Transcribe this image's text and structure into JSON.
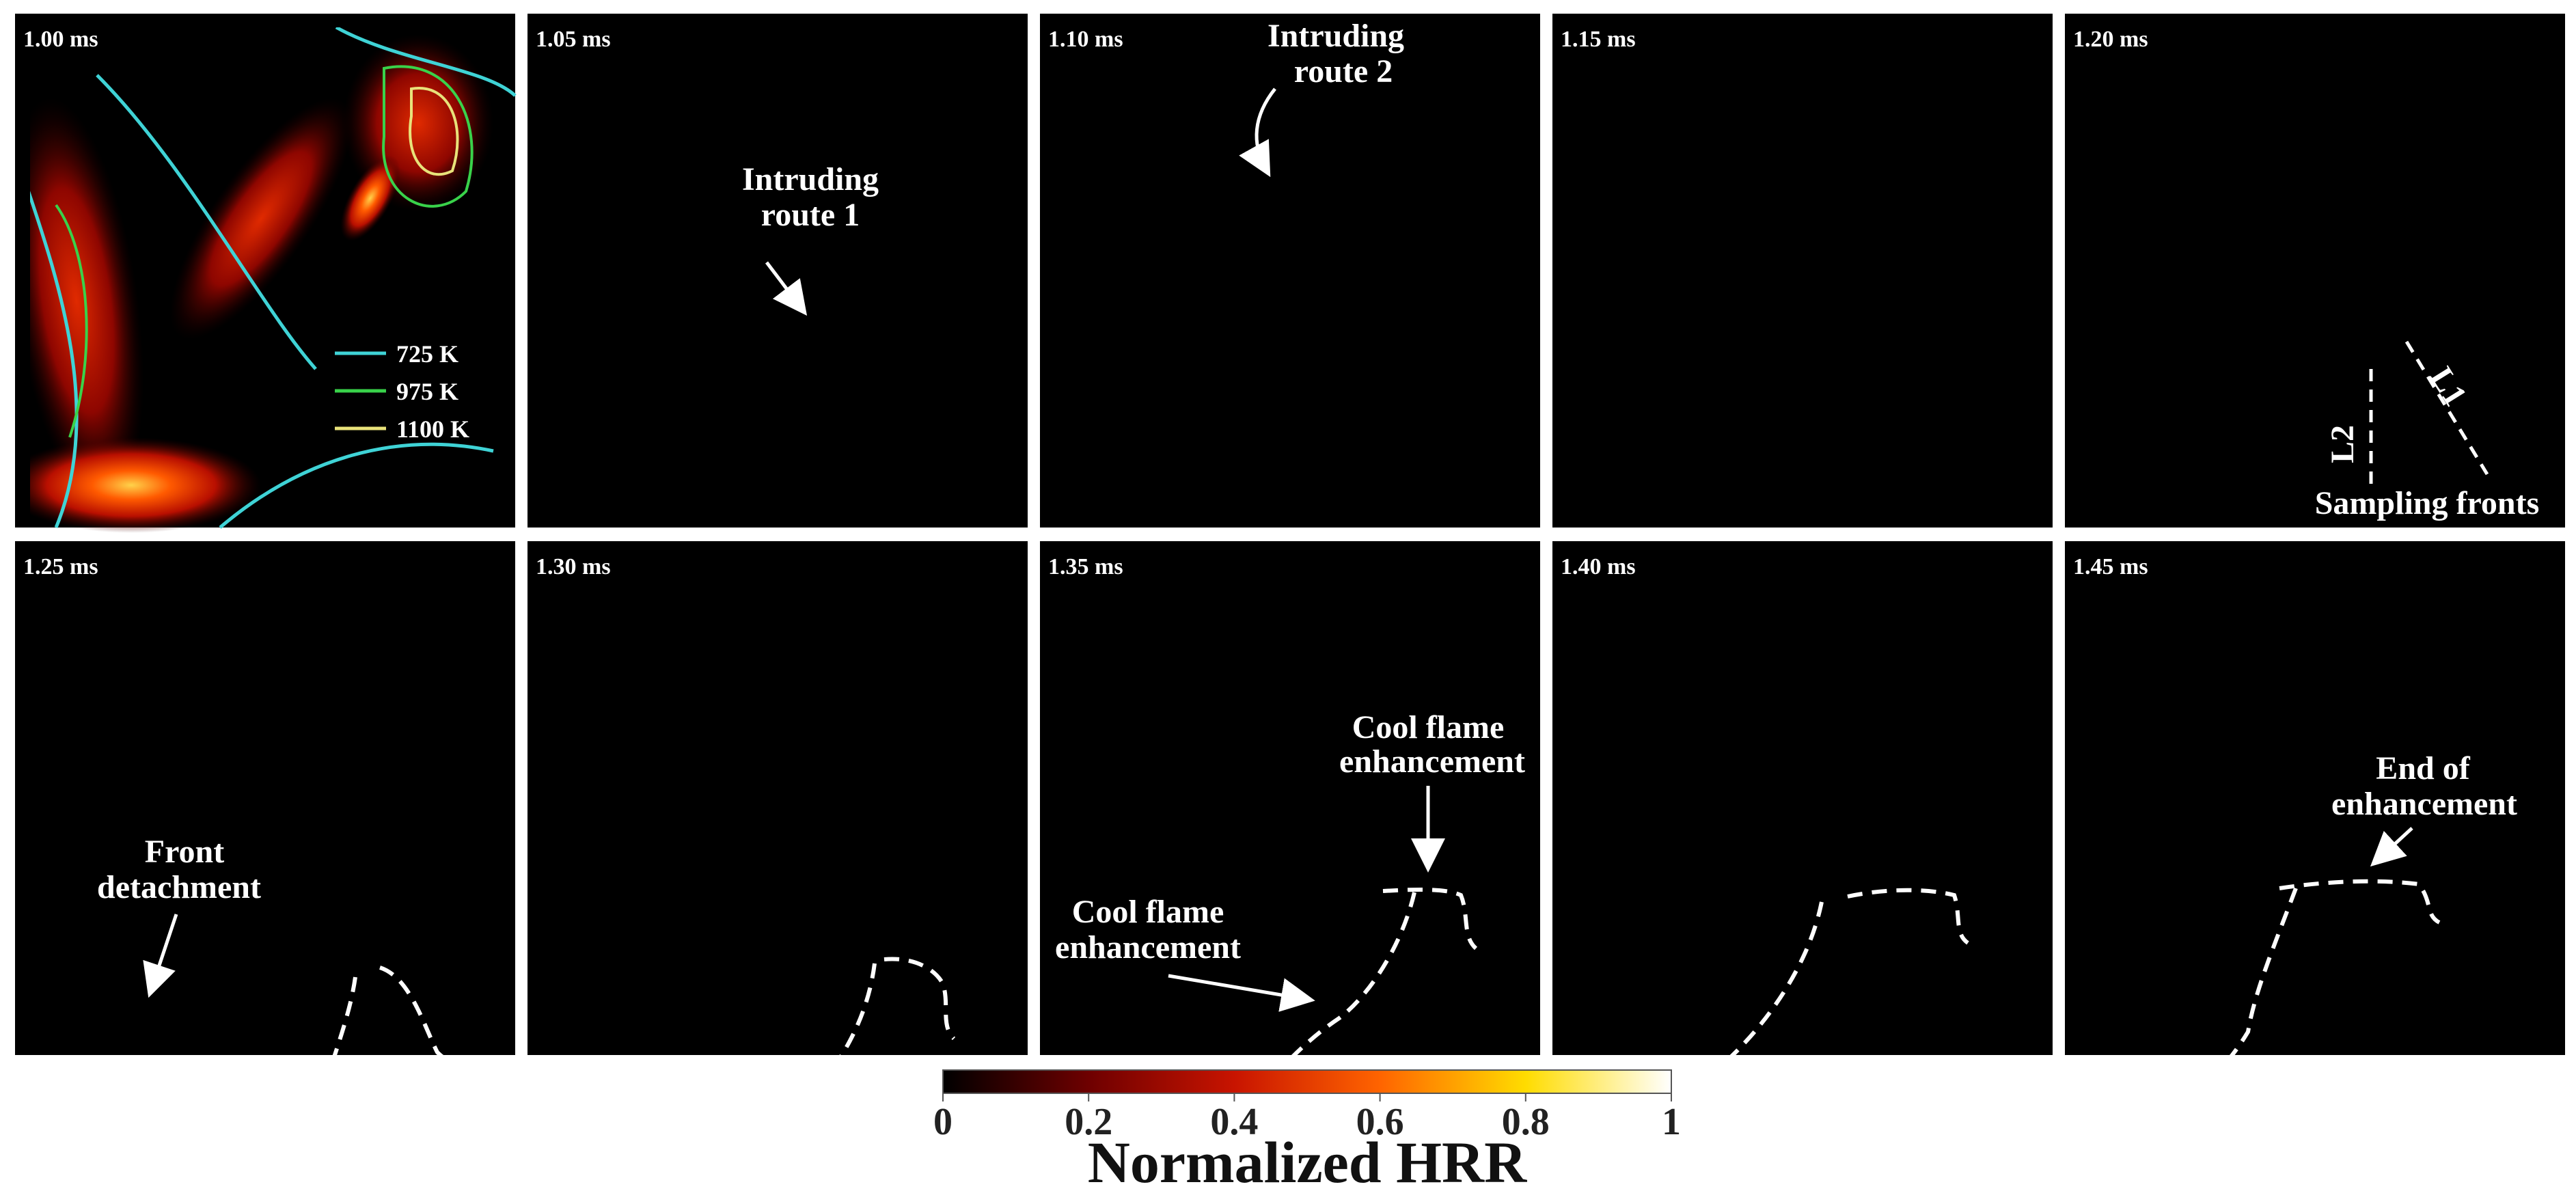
{
  "figure": {
    "panels": [
      {
        "time": "1.00 ms"
      },
      {
        "time": "1.05 ms"
      },
      {
        "time": "1.10 ms"
      },
      {
        "time": "1.15 ms"
      },
      {
        "time": "1.20 ms"
      },
      {
        "time": "1.25 ms"
      },
      {
        "time": "1.30 ms"
      },
      {
        "time": "1.35 ms"
      },
      {
        "time": "1.40 ms"
      },
      {
        "time": "1.45 ms"
      }
    ],
    "legend": [
      {
        "label": "725 K",
        "color": "#3fd3d6"
      },
      {
        "label": "975 K",
        "color": "#39d24a"
      },
      {
        "label": "1100 K",
        "color": "#e8e27a"
      }
    ],
    "annotations": {
      "route1_line1": "Intruding",
      "route1_line2": "route 1",
      "route2_line1": "Intruding",
      "route2_line2": "route 2",
      "l1": "L1",
      "l2": "L2",
      "sampling": "Sampling fronts",
      "detach_line1": "Front",
      "detach_line2": "detachment",
      "cool_a_line1": "Cool flame",
      "cool_a_line2": "enhancement",
      "cool_b_line1": "Cool flame",
      "cool_b_line2": "enhancement",
      "end_line1": "End of",
      "end_line2": "enhancement"
    },
    "colorbar": {
      "ticks": [
        "0",
        "0.2",
        "0.4",
        "0.6",
        "0.8",
        "1"
      ],
      "title": "Normalized HRR",
      "min": 0,
      "max": 1,
      "colors": [
        "#000000",
        "#6e0000",
        "#c81400",
        "#ff6400",
        "#ffdc00",
        "#ffffff"
      ]
    }
  }
}
